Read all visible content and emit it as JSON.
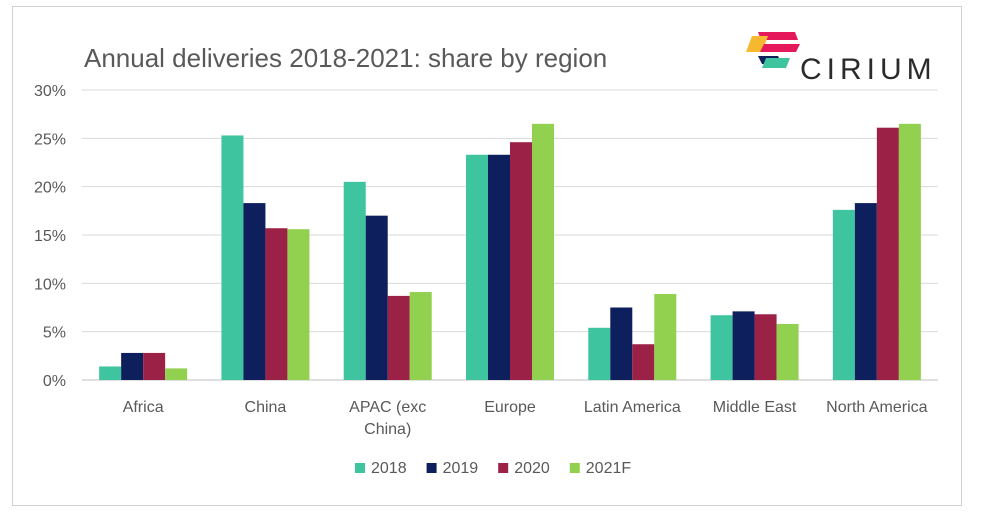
{
  "chart_data": {
    "type": "bar",
    "title": "Annual deliveries 2018-2021: share by region",
    "categories": [
      "Africa",
      "China",
      "APAC (exc China)",
      "Europe",
      "Latin America",
      "Middle East",
      "North America"
    ],
    "category_lines": [
      [
        "Africa"
      ],
      [
        "China"
      ],
      [
        "APAC (exc",
        "China)"
      ],
      [
        "Europe"
      ],
      [
        "Latin America"
      ],
      [
        "Middle East"
      ],
      [
        "North America"
      ]
    ],
    "series": [
      {
        "name": "2018",
        "color": "#3fc4a0",
        "values": [
          1.4,
          25.3,
          20.5,
          23.3,
          5.4,
          6.7,
          17.6
        ]
      },
      {
        "name": "2019",
        "color": "#0d1f5c",
        "values": [
          2.8,
          18.3,
          17.0,
          23.3,
          7.5,
          7.1,
          18.3
        ]
      },
      {
        "name": "2020",
        "color": "#9b2246",
        "values": [
          2.8,
          15.7,
          8.7,
          24.6,
          3.7,
          6.8,
          26.1
        ]
      },
      {
        "name": "2021F",
        "color": "#92d050",
        "values": [
          1.2,
          15.6,
          9.1,
          26.5,
          8.9,
          5.8,
          26.5
        ]
      }
    ],
    "ylim": [
      0,
      30
    ],
    "yticks": [
      0,
      5,
      10,
      15,
      20,
      25,
      30
    ],
    "ytick_labels": [
      "0%",
      "5%",
      "10%",
      "15%",
      "20%",
      "25%",
      "30%"
    ],
    "grid": true,
    "legend_position": "bottom",
    "xlabel": "",
    "ylabel": ""
  },
  "logo": {
    "text": "CIRIUM",
    "colors": [
      "#e4185b",
      "#f5b82e",
      "#3fc4a0",
      "#0d1f5c"
    ]
  }
}
